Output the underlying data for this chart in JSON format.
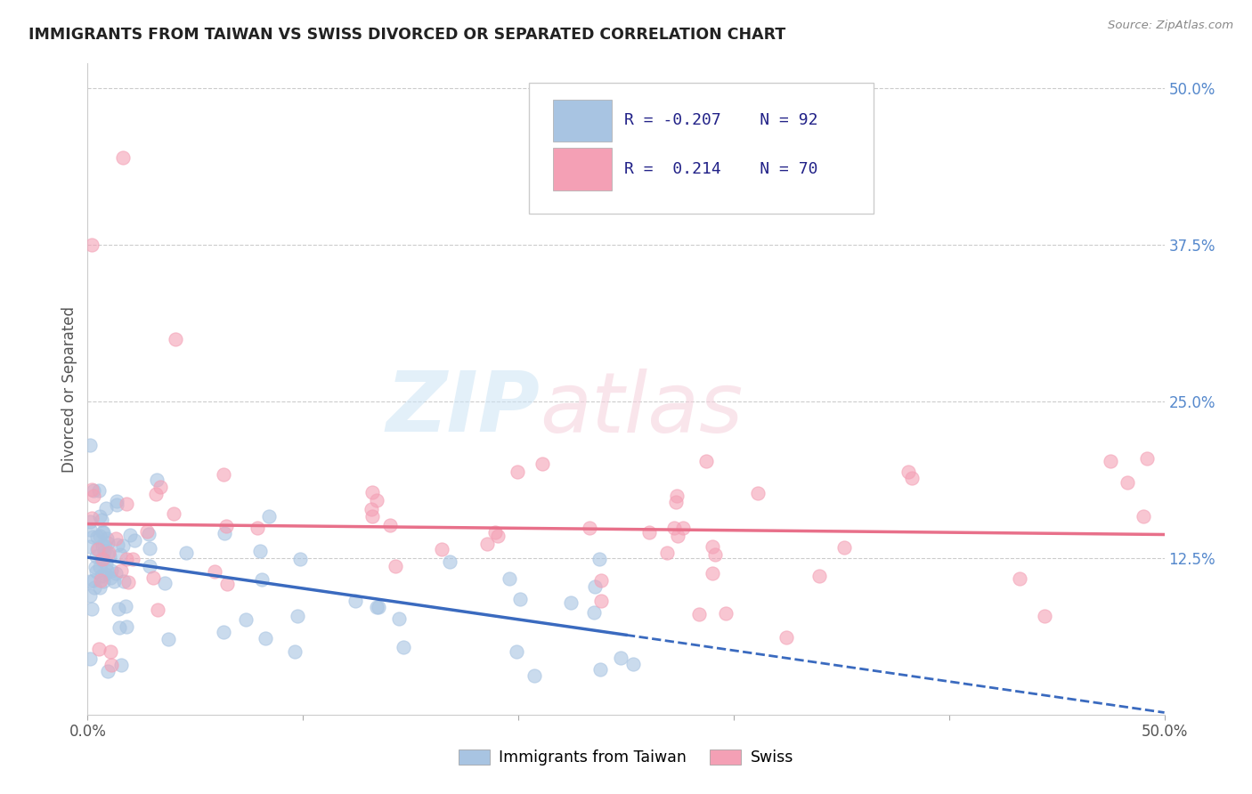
{
  "title": "IMMIGRANTS FROM TAIWAN VS SWISS DIVORCED OR SEPARATED CORRELATION CHART",
  "source": "Source: ZipAtlas.com",
  "ylabel": "Divorced or Separated",
  "right_yticks": [
    "50.0%",
    "37.5%",
    "25.0%",
    "12.5%"
  ],
  "right_ytick_vals": [
    0.5,
    0.375,
    0.25,
    0.125
  ],
  "legend_label1": "Immigrants from Taiwan",
  "legend_label2": "Swiss",
  "r1": "-0.207",
  "n1": "92",
  "r2": "0.214",
  "n2": "70",
  "color_taiwan": "#a8c4e2",
  "color_swiss": "#f4a0b5",
  "color_taiwan_line": "#3a6abf",
  "color_swiss_line": "#e8708a",
  "background": "#ffffff",
  "xlim": [
    0.0,
    0.5
  ],
  "ylim": [
    0.0,
    0.52
  ]
}
